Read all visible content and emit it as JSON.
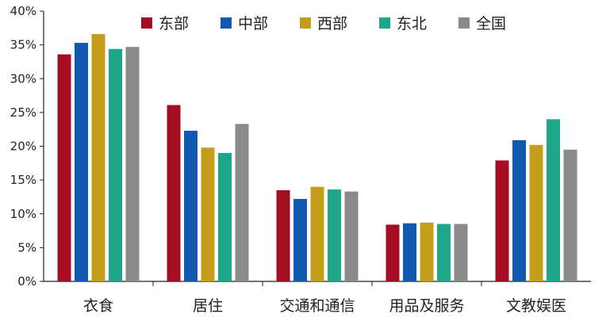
{
  "chart_data": {
    "type": "bar",
    "title": "",
    "xlabel": "",
    "ylabel": "",
    "ylim": [
      0,
      40
    ],
    "y_ticks": [
      "0%",
      "5%",
      "10%",
      "15%",
      "20%",
      "25%",
      "30%",
      "35%",
      "40%"
    ],
    "grid": false,
    "legend_position": "top",
    "categories": [
      "衣食",
      "居住",
      "交通和通信",
      "用品及服务",
      "文教娱医"
    ],
    "series": [
      {
        "name": "东部",
        "color": "#A50D22",
        "values": [
          33.6,
          26.1,
          13.5,
          8.4,
          17.9
        ]
      },
      {
        "name": "中部",
        "color": "#1159B0",
        "values": [
          35.3,
          22.3,
          12.2,
          8.6,
          20.9
        ]
      },
      {
        "name": "西部",
        "color": "#C49E1B",
        "values": [
          36.6,
          19.8,
          14.0,
          8.7,
          20.2
        ]
      },
      {
        "name": "东北",
        "color": "#1EA68A",
        "values": [
          34.4,
          19.0,
          13.6,
          8.5,
          24.0
        ]
      },
      {
        "name": "全国",
        "color": "#8A8A8A",
        "values": [
          34.7,
          23.3,
          13.3,
          8.5,
          19.5
        ]
      }
    ]
  }
}
